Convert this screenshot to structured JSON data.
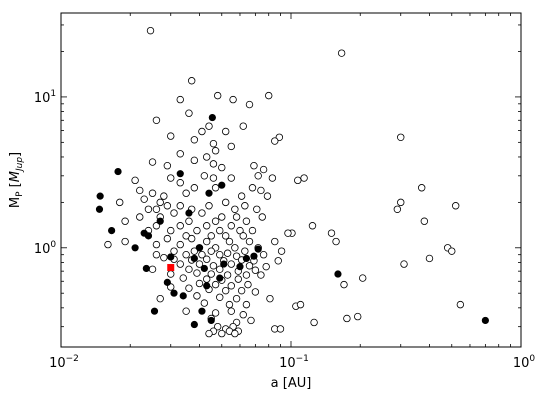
{
  "chart_data": {
    "type": "scatter",
    "title": "",
    "xlabel": "a [AU]",
    "ylabel_main": "M",
    "ylabel_sub": "P",
    "ylabel_bracket_open": " [",
    "ylabel_bracket_main": "M",
    "ylabel_bracket_sub": "Jup",
    "ylabel_bracket_close": "]",
    "x_scale": "log",
    "y_scale": "log",
    "xlim": [
      0.01,
      1.0
    ],
    "ylim": [
      0.22,
      36
    ],
    "grid": false,
    "x_ticks": [
      {
        "value": 0.01,
        "base": "10",
        "exp": "−2"
      },
      {
        "value": 0.1,
        "base": "10",
        "exp": "−1"
      },
      {
        "value": 1.0,
        "base": "10",
        "exp": "0"
      }
    ],
    "y_ticks": [
      {
        "value": 1,
        "base": "10",
        "exp": "0"
      },
      {
        "value": 10,
        "base": "10",
        "exp": "1"
      }
    ],
    "series": [
      {
        "marker": "open-circle",
        "color": "#000000",
        "points": [
          [
            0.0245,
            27.5
          ],
          [
            0.166,
            19.5
          ],
          [
            0.037,
            12.8
          ],
          [
            0.048,
            10.2
          ],
          [
            0.033,
            9.6
          ],
          [
            0.056,
            9.6
          ],
          [
            0.08,
            10.2
          ],
          [
            0.066,
            8.9
          ],
          [
            0.036,
            7.8
          ],
          [
            0.026,
            7.0
          ],
          [
            0.044,
            6.4
          ],
          [
            0.062,
            6.4
          ],
          [
            0.041,
            5.9
          ],
          [
            0.052,
            5.9
          ],
          [
            0.03,
            5.5
          ],
          [
            0.038,
            5.2
          ],
          [
            0.089,
            5.4
          ],
          [
            0.085,
            5.1
          ],
          [
            0.3,
            5.4
          ],
          [
            0.046,
            4.9
          ],
          [
            0.055,
            4.7
          ],
          [
            0.047,
            4.4
          ],
          [
            0.033,
            4.2
          ],
          [
            0.043,
            4.0
          ],
          [
            0.025,
            3.7
          ],
          [
            0.029,
            3.5
          ],
          [
            0.038,
            3.8
          ],
          [
            0.046,
            3.6
          ],
          [
            0.05,
            3.4
          ],
          [
            0.069,
            3.5
          ],
          [
            0.076,
            3.3
          ],
          [
            0.072,
            3.0
          ],
          [
            0.042,
            3.0
          ],
          [
            0.046,
            2.9
          ],
          [
            0.055,
            2.9
          ],
          [
            0.083,
            2.9
          ],
          [
            0.107,
            2.8
          ],
          [
            0.114,
            2.9
          ],
          [
            0.03,
            2.9
          ],
          [
            0.033,
            2.7
          ],
          [
            0.021,
            2.8
          ],
          [
            0.038,
            2.5
          ],
          [
            0.047,
            2.5
          ],
          [
            0.068,
            2.5
          ],
          [
            0.074,
            2.4
          ],
          [
            0.022,
            2.4
          ],
          [
            0.025,
            2.3
          ],
          [
            0.028,
            2.2
          ],
          [
            0.035,
            2.3
          ],
          [
            0.061,
            2.2
          ],
          [
            0.079,
            2.2
          ],
          [
            0.023,
            2.1
          ],
          [
            0.027,
            2.0
          ],
          [
            0.029,
            1.9
          ],
          [
            0.018,
            2.0
          ],
          [
            0.033,
            1.9
          ],
          [
            0.044,
            1.9
          ],
          [
            0.052,
            2.0
          ],
          [
            0.057,
            1.8
          ],
          [
            0.026,
            1.8
          ],
          [
            0.024,
            1.8
          ],
          [
            0.037,
            1.8
          ],
          [
            0.063,
            1.9
          ],
          [
            0.071,
            1.8
          ],
          [
            0.3,
            2.0
          ],
          [
            0.29,
            1.8
          ],
          [
            0.37,
            2.5
          ],
          [
            0.52,
            1.9
          ],
          [
            0.031,
            1.7
          ],
          [
            0.041,
            1.7
          ],
          [
            0.05,
            1.6
          ],
          [
            0.058,
            1.6
          ],
          [
            0.022,
            1.6
          ],
          [
            0.027,
            1.6
          ],
          [
            0.036,
            1.5
          ],
          [
            0.047,
            1.5
          ],
          [
            0.064,
            1.5
          ],
          [
            0.075,
            1.6
          ],
          [
            0.124,
            1.4
          ],
          [
            0.38,
            1.5
          ],
          [
            0.019,
            1.5
          ],
          [
            0.026,
            1.4
          ],
          [
            0.033,
            1.4
          ],
          [
            0.043,
            1.4
          ],
          [
            0.055,
            1.4
          ],
          [
            0.068,
            1.3
          ],
          [
            0.024,
            1.3
          ],
          [
            0.03,
            1.3
          ],
          [
            0.039,
            1.3
          ],
          [
            0.049,
            1.3
          ],
          [
            0.06,
            1.3
          ],
          [
            0.101,
            1.25
          ],
          [
            0.097,
            1.25
          ],
          [
            0.15,
            1.25
          ],
          [
            0.035,
            1.2
          ],
          [
            0.045,
            1.2
          ],
          [
            0.052,
            1.2
          ],
          [
            0.062,
            1.2
          ],
          [
            0.019,
            1.1
          ],
          [
            0.016,
            1.05
          ],
          [
            0.029,
            1.15
          ],
          [
            0.037,
            1.15
          ],
          [
            0.043,
            1.1
          ],
          [
            0.054,
            1.1
          ],
          [
            0.066,
            1.1
          ],
          [
            0.085,
            1.1
          ],
          [
            0.157,
            1.1
          ],
          [
            0.026,
            1.05
          ],
          [
            0.033,
            1.05
          ],
          [
            0.04,
            1.0
          ],
          [
            0.047,
            1.0
          ],
          [
            0.057,
            1.0
          ],
          [
            0.072,
            1.0
          ],
          [
            0.48,
            1.0
          ],
          [
            0.5,
            0.95
          ],
          [
            0.031,
            0.95
          ],
          [
            0.038,
            0.95
          ],
          [
            0.045,
            0.95
          ],
          [
            0.053,
            0.92
          ],
          [
            0.063,
            0.95
          ],
          [
            0.091,
            0.95
          ],
          [
            0.026,
            0.9
          ],
          [
            0.035,
            0.9
          ],
          [
            0.041,
            0.9
          ],
          [
            0.049,
            0.9
          ],
          [
            0.058,
            0.88
          ],
          [
            0.076,
            0.9
          ],
          [
            0.4,
            0.85
          ],
          [
            0.028,
            0.86
          ],
          [
            0.031,
            0.84
          ],
          [
            0.037,
            0.83
          ],
          [
            0.043,
            0.84
          ],
          [
            0.051,
            0.82
          ],
          [
            0.061,
            0.83
          ],
          [
            0.069,
            0.82
          ],
          [
            0.088,
            0.82
          ],
          [
            0.033,
            0.78
          ],
          [
            0.04,
            0.78
          ],
          [
            0.046,
            0.76
          ],
          [
            0.055,
            0.78
          ],
          [
            0.066,
            0.76
          ],
          [
            0.078,
            0.75
          ],
          [
            0.31,
            0.78
          ],
          [
            0.025,
            0.72
          ],
          [
            0.036,
            0.72
          ],
          [
            0.049,
            0.72
          ],
          [
            0.059,
            0.7
          ],
          [
            0.07,
            0.71
          ],
          [
            0.03,
            0.67
          ],
          [
            0.039,
            0.68
          ],
          [
            0.045,
            0.67
          ],
          [
            0.053,
            0.66
          ],
          [
            0.064,
            0.66
          ],
          [
            0.074,
            0.66
          ],
          [
            0.205,
            0.63
          ],
          [
            0.034,
            0.63
          ],
          [
            0.043,
            0.62
          ],
          [
            0.05,
            0.61
          ],
          [
            0.059,
            0.62
          ],
          [
            0.04,
            0.58
          ],
          [
            0.047,
            0.57
          ],
          [
            0.055,
            0.56
          ],
          [
            0.065,
            0.57
          ],
          [
            0.17,
            0.57
          ],
          [
            0.03,
            0.55
          ],
          [
            0.036,
            0.54
          ],
          [
            0.044,
            0.53
          ],
          [
            0.052,
            0.52
          ],
          [
            0.061,
            0.52
          ],
          [
            0.07,
            0.51
          ],
          [
            0.027,
            0.46
          ],
          [
            0.039,
            0.48
          ],
          [
            0.049,
            0.47
          ],
          [
            0.058,
            0.46
          ],
          [
            0.081,
            0.46
          ],
          [
            0.042,
            0.43
          ],
          [
            0.054,
            0.42
          ],
          [
            0.064,
            0.42
          ],
          [
            0.105,
            0.41
          ],
          [
            0.11,
            0.42
          ],
          [
            0.545,
            0.42
          ],
          [
            0.035,
            0.38
          ],
          [
            0.047,
            0.37
          ],
          [
            0.055,
            0.38
          ],
          [
            0.062,
            0.36
          ],
          [
            0.175,
            0.34
          ],
          [
            0.045,
            0.34
          ],
          [
            0.058,
            0.32
          ],
          [
            0.067,
            0.33
          ],
          [
            0.126,
            0.32
          ],
          [
            0.195,
            0.35
          ],
          [
            0.048,
            0.3
          ],
          [
            0.052,
            0.29
          ],
          [
            0.056,
            0.3
          ],
          [
            0.085,
            0.29
          ],
          [
            0.09,
            0.29
          ],
          [
            0.046,
            0.28
          ],
          [
            0.054,
            0.28
          ],
          [
            0.059,
            0.28
          ],
          [
            0.044,
            0.27
          ],
          [
            0.05,
            0.27
          ],
          [
            0.057,
            0.27
          ]
        ]
      },
      {
        "marker": "filled-circle",
        "color": "#000000",
        "points": [
          [
            0.0455,
            7.3
          ],
          [
            0.0177,
            3.2
          ],
          [
            0.033,
            3.1
          ],
          [
            0.05,
            2.6
          ],
          [
            0.0148,
            2.2
          ],
          [
            0.0147,
            1.8
          ],
          [
            0.044,
            2.3
          ],
          [
            0.036,
            1.7
          ],
          [
            0.027,
            1.5
          ],
          [
            0.024,
            1.2
          ],
          [
            0.023,
            1.25
          ],
          [
            0.021,
            1.0
          ],
          [
            0.0166,
            1.3
          ],
          [
            0.04,
            1.0
          ],
          [
            0.03,
            0.87
          ],
          [
            0.038,
            0.85
          ],
          [
            0.051,
            0.78
          ],
          [
            0.042,
            0.73
          ],
          [
            0.06,
            0.75
          ],
          [
            0.072,
            0.98
          ],
          [
            0.069,
            0.88
          ],
          [
            0.16,
            0.67
          ],
          [
            0.0235,
            0.73
          ],
          [
            0.043,
            0.56
          ],
          [
            0.034,
            0.48
          ],
          [
            0.031,
            0.5
          ],
          [
            0.029,
            0.59
          ],
          [
            0.049,
            0.63
          ],
          [
            0.041,
            0.38
          ],
          [
            0.045,
            0.33
          ],
          [
            0.038,
            0.31
          ],
          [
            0.0255,
            0.38
          ],
          [
            0.7,
            0.33
          ],
          [
            0.064,
            0.85
          ]
        ]
      },
      {
        "marker": "square",
        "color": "#ff0000",
        "points": [
          [
            0.03,
            0.74
          ]
        ]
      }
    ]
  }
}
